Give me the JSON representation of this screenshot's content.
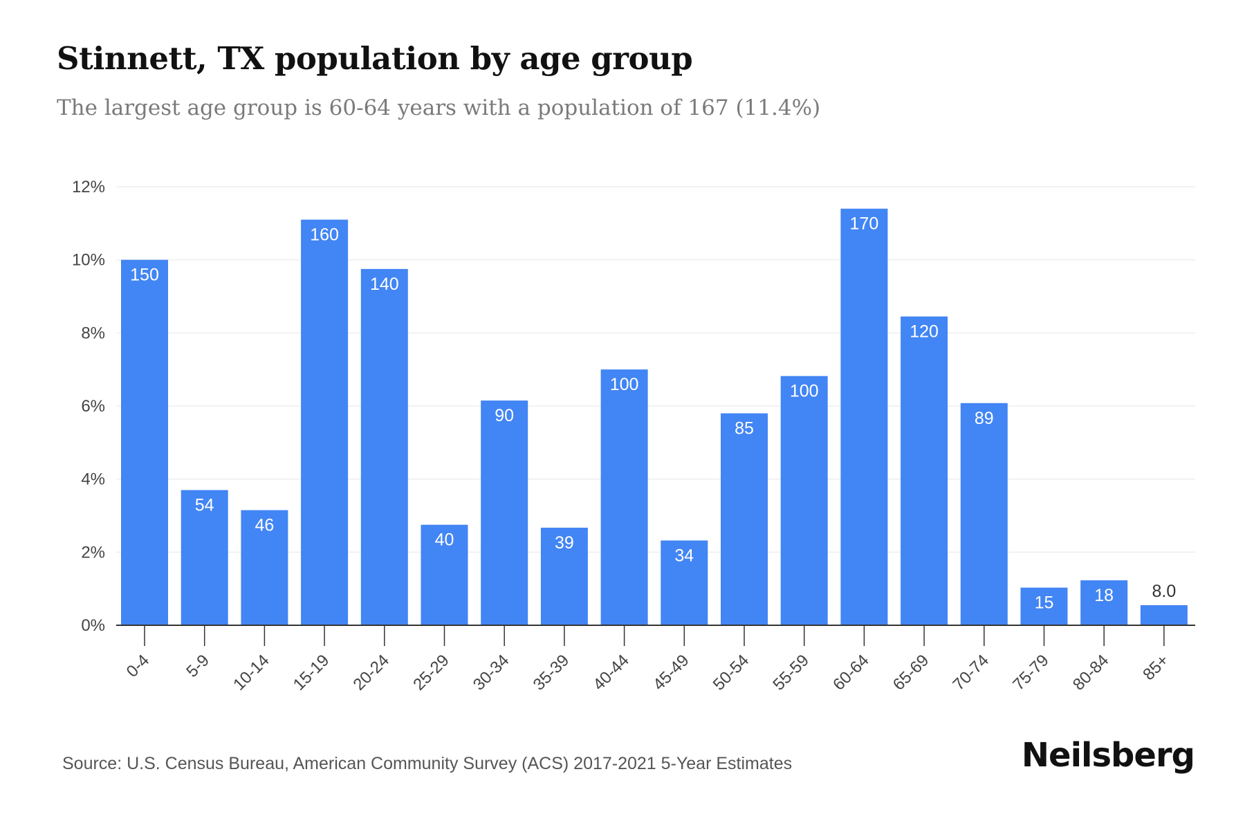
{
  "header": {
    "title": "Stinnett, TX population by age group",
    "subtitle": "The largest age group is 60-64 years with a population of 167 (11.4%)"
  },
  "footer": {
    "source": "Source: U.S. Census Bureau, American Community Survey (ACS) 2017-2021 5-Year Estimates",
    "brand": "Neilsberg"
  },
  "colors": {
    "bar": "#4285f4",
    "grid": "#eeeeee",
    "axis": "#333333",
    "tick_text": "#444444",
    "label_inside": "#ffffff",
    "label_outside": "#333333"
  },
  "chart_data": {
    "type": "bar",
    "title": "Stinnett, TX population by age group",
    "subtitle": "The largest age group is 60-64 years with a population of 167 (11.4%)",
    "categories": [
      "0-4",
      "5-9",
      "10-14",
      "15-19",
      "20-24",
      "25-29",
      "30-34",
      "35-39",
      "40-44",
      "45-49",
      "50-54",
      "55-59",
      "60-64",
      "65-69",
      "70-74",
      "75-79",
      "80-84",
      "85+"
    ],
    "values": [
      10.0,
      3.7,
      3.15,
      11.1,
      9.75,
      2.75,
      6.15,
      2.67,
      7.0,
      2.32,
      5.8,
      6.82,
      11.4,
      8.45,
      6.08,
      1.03,
      1.23,
      0.55
    ],
    "data_labels": [
      "150",
      "54",
      "46",
      "160",
      "140",
      "40",
      "90",
      "39",
      "100",
      "34",
      "85",
      "100",
      "170",
      "120",
      "89",
      "15",
      "18",
      "8.0"
    ],
    "yticks": [
      "0%",
      "2%",
      "4%",
      "6%",
      "8%",
      "10%",
      "12%"
    ],
    "ytick_values": [
      0,
      2,
      4,
      6,
      8,
      10,
      12
    ],
    "ylim": [
      0,
      12
    ],
    "xlabel": "",
    "ylabel": "",
    "grid": true,
    "legend": "none"
  }
}
